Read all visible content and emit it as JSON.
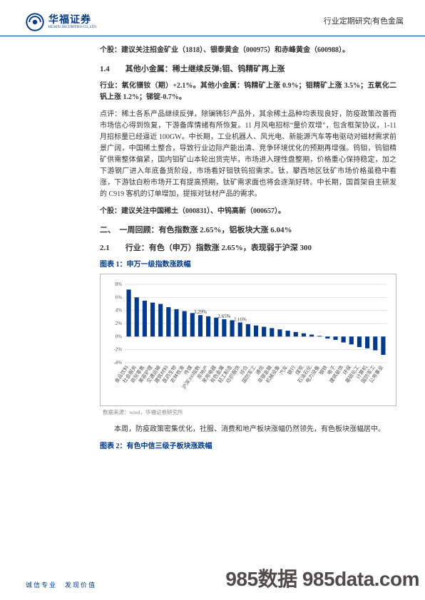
{
  "header": {
    "logo_cn": "华福证券",
    "logo_en": "HUAFU SECURITIES CO.,LTD.",
    "right": "行业定期研究|有色金属"
  },
  "body": {
    "gegu1": "个股：建议关注招金矿业（1818）、银泰黄金（000975）和赤峰黄金（600988）。",
    "s14_title": "1.4　　其他小金属：稀土继续反弹;钼、钨精矿再上涨",
    "hangye1": "行业：氧化镨钕（期）+2.1%。其他小金属：钨精矿上涨 0.9%；钼精矿上涨 3.5%；五氧化二钒上涨 1.2%；锑锭-0.7%。",
    "dianping": "点评：稀土各系产品继续反弹，除镧钸钐产品外，其余稀土品种均表现良好，防疫政策改善而市场信心得到恢复，下游备库情绪有所恢复。11 月风电招标“量价双增”，包含框架协议，1-11 月招标量已经逼近 100GW。中长期，工业机器人、风光电、新能源汽车等电驱动对磁材需求前景广阔，中国稀土整合，导致行业边际产能出清、竞争环境优化的预期再增强。钨钼，钨钼精矿供需整体偏紧，国内钼矿山本轮出货完毕，市场进入理性盘整期，价格重心保持稳定，加之下游钢厂进入年底备货阶段，市场看好钼铁钨招需求。钛，攀西地区钛矿市场价格虽稳中看涨，下游钛白粉市场开工有提高预期，钛矿需求面也将会逐渐好转。中长期，国首架自主研发的 C919 客机的订单增加，提振对钛材产品的需求。",
    "gegu2": "个股：建议关注中国稀土（000831）、中钨高新（000657）。",
    "s2_title": "二、　一周回顾：有色指数涨 2.65%，铝板块大涨 6.04%",
    "s21_title": "2.1　　行业：有色（申万）指数涨 2.65%，表现弱于沪深 300",
    "chart1_title_pre": "图表 1：",
    "chart1_title": "申万一级指数涨跌幅",
    "chart_src": "数据来源：wind，华福证券研究所",
    "para2": "　　本周，防疫政策密集优化，社服、消费和地产板块涨幅仍然领先，有色板块涨幅居中。",
    "chart2_title_pre": "图表 2：",
    "chart2_title": "有色中信三级子板块涨跌幅"
  },
  "chart1": {
    "ylim": [
      -4,
      8
    ],
    "yticks": [
      -4,
      -2,
      0,
      2,
      4,
      6,
      8
    ],
    "bar_color": "#003a8c",
    "grid_color": "#cccccc",
    "bg_color": "#ffffff",
    "categories": [
      "食品饮料",
      "社会服务",
      "商贸零售",
      "美容护理",
      "交通运输",
      "建筑材料",
      "医药生物",
      "农林牧渔",
      "传媒",
      "沪深300指数",
      "房地产",
      "家用电器",
      "有色金属",
      "轻工制造",
      "纺织服饰",
      "综合",
      "国防军工",
      "通信",
      "非银金融",
      "机械设备",
      "汽车",
      "银行",
      "煤炭",
      "石油石化",
      "电力设备",
      "钢铁",
      "电子",
      "建筑装饰",
      "环保",
      "基础化工",
      "计算机",
      "国防军工",
      "公用事业"
    ],
    "values": [
      7.2,
      6.0,
      5.5,
      5.2,
      5.0,
      4.5,
      4.2,
      3.9,
      3.6,
      3.29,
      3.1,
      2.9,
      2.65,
      2.5,
      2.16,
      1.9,
      1.7,
      1.5,
      1.3,
      1.1,
      0.9,
      0.7,
      0.5,
      0.3,
      0.1,
      -0.3,
      -0.5,
      -0.9,
      -1.2,
      -1.6,
      -1.8,
      -2.1,
      -2.8
    ],
    "labels": [
      {
        "i": 9,
        "v": "3.29%"
      },
      {
        "i": 12,
        "v": "2.65%"
      },
      {
        "i": 14,
        "v": "2.16%"
      }
    ]
  },
  "footer": {
    "left": "诚信专业　发现价值",
    "watermark": "985数据 985data.com"
  }
}
